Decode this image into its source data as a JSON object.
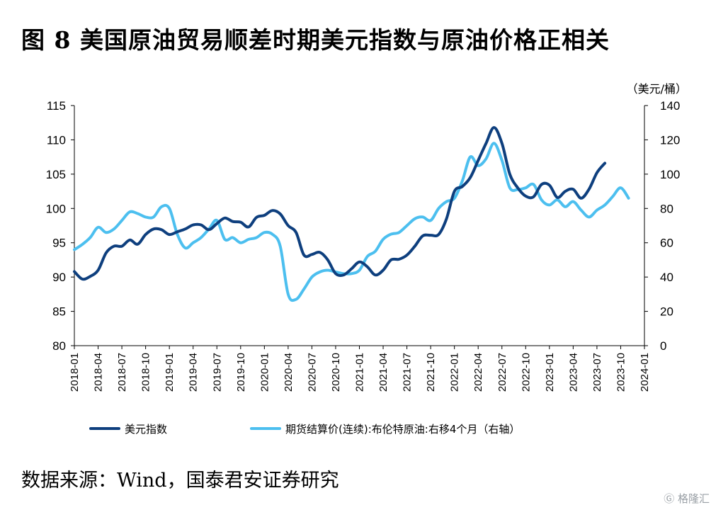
{
  "title": "图 8 美国原油贸易顺差时期美元指数与原油价格正相关",
  "source": "数据来源：Wind，国泰君安证券研究",
  "watermark": "格隆汇",
  "chart_data": {
    "type": "line",
    "title": "图 8 美国原油贸易顺差时期美元指数与原油价格正相关",
    "right_axis_unit": "（美元/桶）",
    "xlabel": "",
    "ylabel": "",
    "ylim_left": [
      80,
      115
    ],
    "ylim_right": [
      0,
      140
    ],
    "yticks_left": [
      80,
      85,
      90,
      95,
      100,
      105,
      110,
      115
    ],
    "yticks_right": [
      0,
      20,
      40,
      60,
      80,
      100,
      120,
      140
    ],
    "grid": false,
    "legend_position": "bottom",
    "x_tick_labels": [
      "2018-01",
      "2018-04",
      "2018-07",
      "2018-10",
      "2019-01",
      "2019-04",
      "2019-07",
      "2019-10",
      "2020-01",
      "2020-04",
      "2020-07",
      "2020-10",
      "2021-01",
      "2021-04",
      "2021-07",
      "2021-10",
      "2022-01",
      "2022-04",
      "2022-07",
      "2022-10",
      "2023-01",
      "2023-04",
      "2023-07",
      "2023-10",
      "2024-01"
    ],
    "colors": {
      "usd": "#0e3f7e",
      "oil": "#4cbfef"
    },
    "series": [
      {
        "name": "美元指数",
        "axis": "left",
        "color": "#0e3f7e",
        "values": [
          90.8,
          89.7,
          90.1,
          91.0,
          93.5,
          94.5,
          94.5,
          95.4,
          94.8,
          96.2,
          97.0,
          96.9,
          96.2,
          96.6,
          97.0,
          97.6,
          97.6,
          96.9,
          97.8,
          98.6,
          98.1,
          98.0,
          97.3,
          98.7,
          99.0,
          99.7,
          99.2,
          97.5,
          96.5,
          93.2,
          93.3,
          93.6,
          92.5,
          90.5,
          90.3,
          91.2,
          92.2,
          91.5,
          90.3,
          91.0,
          92.5,
          92.6,
          93.2,
          94.5,
          96.0,
          96.1,
          96.2,
          98.5,
          102.5,
          103.2,
          104.5,
          107.0,
          109.5,
          111.8,
          109.5,
          105.0,
          103.0,
          101.8,
          101.7,
          103.5,
          103.4,
          101.6,
          102.5,
          102.8,
          101.5,
          102.8,
          105.2,
          106.6
        ]
      },
      {
        "name": "期货结算价(连续):布伦特原油:右移4个月（右轴）",
        "axis": "right",
        "color": "#4cbfef",
        "values": [
          56,
          59,
          63,
          69,
          66,
          68,
          73,
          78,
          77,
          75,
          75,
          81,
          80,
          65,
          57,
          60,
          63,
          68,
          73,
          62,
          63,
          60,
          62,
          63,
          66,
          65,
          58,
          30,
          27,
          33,
          40,
          43,
          44,
          43,
          42,
          42,
          44,
          52,
          55,
          62,
          65,
          66,
          70,
          74,
          75,
          73,
          80,
          84,
          86,
          96,
          110,
          105,
          109,
          118,
          108,
          92,
          91,
          92,
          94,
          85,
          82,
          85,
          81,
          84,
          79,
          75,
          79,
          82,
          87,
          92,
          86
        ]
      }
    ]
  }
}
